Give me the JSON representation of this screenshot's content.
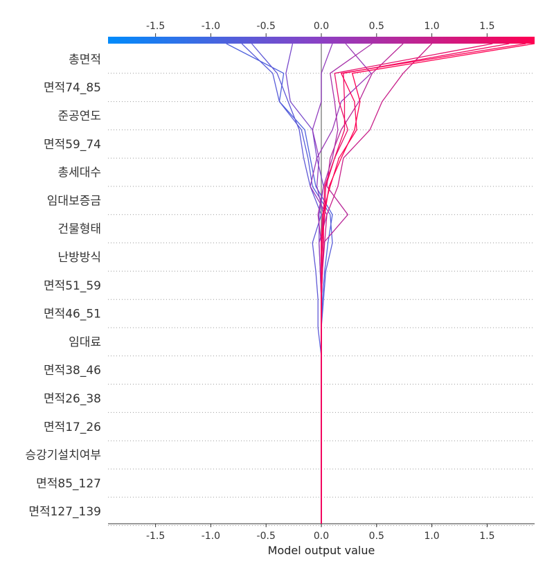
{
  "chart_data": {
    "type": "line",
    "subtype": "decision-plot",
    "xlabel": "Model output value",
    "xlim": [
      -1.93,
      1.93
    ],
    "xticks": [
      -1.5,
      -1.0,
      -0.5,
      0.0,
      0.5,
      1.0,
      1.5
    ],
    "xtick_labels": [
      "-1.5",
      "-1.0",
      "-0.5",
      "0.0",
      "0.5",
      "1.0",
      "1.5"
    ],
    "base_value": 0.0,
    "colorbar": {
      "min": -1.93,
      "max": 1.93,
      "low_color": "#008bfb",
      "mid_color": "#8c40c4",
      "high_color": "#ff0052"
    },
    "features": [
      "총면적",
      "면적74_85",
      "준공연도",
      "면적59_74",
      "총세대수",
      "임대보증금",
      "건물형태",
      "난방방식",
      "면적51_59",
      "면적46_51",
      "임대료",
      "면적38_46",
      "면적26_38",
      "면적17_26",
      "승강기설치여부",
      "면적85_127",
      "면적127_139"
    ],
    "series": [
      {
        "values": [
          -0.86,
          -0.34,
          -0.38,
          -0.15,
          -0.1,
          -0.05,
          0.1,
          0.06,
          0.03,
          0.01,
          0.0,
          0.0,
          0.0,
          0.0,
          0.0,
          0.0,
          0.0,
          0.0
        ]
      },
      {
        "values": [
          -0.72,
          -0.44,
          -0.38,
          -0.18,
          -0.12,
          -0.08,
          0.08,
          0.1,
          0.04,
          0.02,
          0.0,
          0.0,
          0.0,
          0.0,
          0.0,
          0.0,
          0.0,
          0.0
        ]
      },
      {
        "values": [
          -0.63,
          -0.4,
          -0.3,
          -0.2,
          -0.16,
          -0.1,
          0.0,
          -0.08,
          -0.05,
          -0.03,
          -0.03,
          0.0,
          0.0,
          0.0,
          0.0,
          0.0,
          0.0,
          0.0
        ]
      },
      {
        "values": [
          -0.26,
          -0.32,
          -0.28,
          -0.08,
          -0.04,
          0.02,
          -0.02,
          -0.02,
          -0.01,
          0.0,
          0.0,
          0.0,
          0.0,
          0.0,
          0.0,
          0.0,
          0.0,
          0.0
        ]
      },
      {
        "values": [
          0.1,
          0.0,
          0.0,
          -0.08,
          -0.02,
          -0.04,
          0.02,
          0.0,
          0.0,
          0.0,
          0.0,
          0.0,
          0.0,
          0.0,
          0.0,
          0.0,
          0.0,
          0.0
        ]
      },
      {
        "values": [
          0.22,
          0.45,
          0.18,
          0.1,
          -0.04,
          -0.1,
          0.05,
          -0.02,
          -0.01,
          0.0,
          0.0,
          0.0,
          0.0,
          0.0,
          0.0,
          0.0,
          0.0,
          0.0
        ]
      },
      {
        "values": [
          0.46,
          0.08,
          0.12,
          0.15,
          0.1,
          0.02,
          -0.03,
          0.0,
          0.01,
          0.0,
          0.0,
          0.0,
          0.0,
          0.0,
          0.0,
          0.0,
          0.0,
          0.0
        ]
      },
      {
        "values": [
          0.74,
          0.46,
          0.34,
          0.18,
          0.08,
          0.05,
          0.24,
          0.02,
          0.01,
          0.0,
          0.0,
          0.0,
          0.0,
          0.0,
          0.0,
          0.0,
          0.0,
          0.0
        ]
      },
      {
        "values": [
          1.0,
          0.74,
          0.55,
          0.44,
          0.2,
          0.15,
          0.05,
          0.03,
          0.01,
          0.0,
          0.0,
          0.0,
          0.0,
          0.0,
          0.0,
          0.0,
          0.0,
          0.0
        ]
      },
      {
        "values": [
          1.55,
          0.12,
          0.16,
          0.24,
          0.12,
          0.04,
          0.03,
          0.01,
          0.0,
          0.0,
          0.0,
          0.0,
          0.0,
          0.0,
          0.0,
          0.0,
          0.0,
          0.0
        ]
      },
      {
        "values": [
          1.7,
          0.2,
          0.21,
          0.21,
          0.12,
          0.03,
          0.02,
          0.02,
          0.01,
          0.0,
          0.0,
          0.0,
          0.0,
          0.0,
          0.0,
          0.0,
          0.0,
          0.0
        ]
      },
      {
        "values": [
          1.85,
          0.18,
          0.3,
          0.32,
          0.16,
          0.08,
          0.01,
          0.0,
          0.0,
          0.0,
          0.0,
          0.0,
          0.0,
          0.0,
          0.0,
          0.0,
          0.0,
          0.0
        ]
      },
      {
        "values": [
          1.93,
          0.28,
          0.35,
          0.3,
          0.18,
          0.07,
          0.03,
          0.0,
          0.0,
          0.0,
          0.0,
          0.0,
          0.0,
          0.0,
          0.0,
          0.0,
          0.0,
          0.0
        ]
      }
    ]
  }
}
